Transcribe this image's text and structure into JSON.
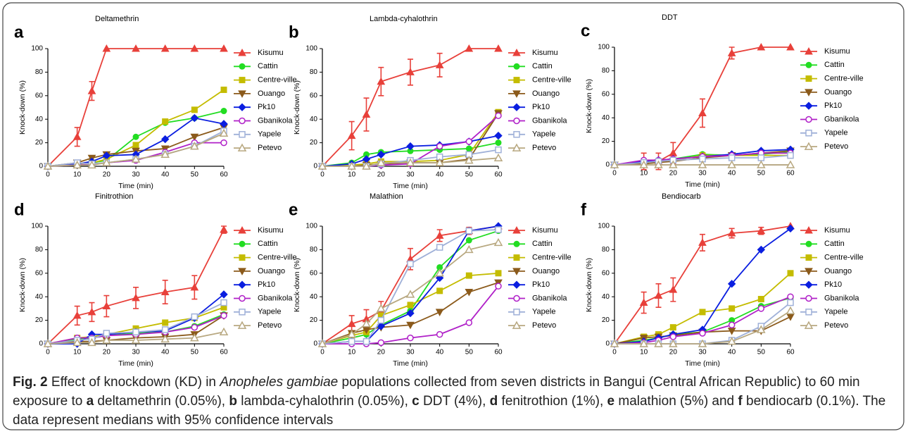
{
  "chart_data": [
    {
      "type": "line",
      "panel_label": "a",
      "title": "Deltamethrin",
      "xlabel": "Time (min)",
      "ylabel": "Knock-down (%)",
      "x": [
        0,
        10,
        15,
        20,
        30,
        40,
        50,
        60
      ],
      "xlim": [
        0,
        60
      ],
      "ylim": [
        0,
        100
      ],
      "xticks": [
        0,
        10,
        20,
        30,
        40,
        50,
        60
      ],
      "yticks": [
        0,
        20,
        40,
        60,
        80,
        100
      ],
      "series": [
        {
          "name": "Kisumu",
          "color": "#e8403a",
          "marker": "triangle",
          "values": [
            0,
            25,
            64,
            100,
            100,
            100,
            100,
            100
          ],
          "errors": [
            0,
            8,
            8,
            0,
            0,
            0,
            0,
            0
          ]
        },
        {
          "name": "Cattin",
          "color": "#22dd22",
          "marker": "circle",
          "values": [
            0,
            2,
            3,
            5,
            25,
            37,
            41,
            47
          ]
        },
        {
          "name": "Centre-ville",
          "color": "#c4bc00",
          "marker": "square",
          "values": [
            0,
            2,
            3,
            6,
            18,
            38,
            48,
            65
          ]
        },
        {
          "name": "Ouango",
          "color": "#8b5a1b",
          "marker": "triangle-down",
          "values": [
            0,
            3,
            7,
            10,
            13,
            15,
            25,
            33
          ]
        },
        {
          "name": "Pk10",
          "color": "#0a1ee0",
          "marker": "diamond",
          "values": [
            0,
            2,
            4,
            9,
            10,
            23,
            41,
            36
          ]
        },
        {
          "name": "Gbanikola",
          "color": "#b020c8",
          "marker": "circle-open",
          "values": [
            0,
            1,
            2,
            3,
            5,
            12,
            20,
            20
          ]
        },
        {
          "name": "Yapele",
          "color": "#9fb0d8",
          "marker": "square-open",
          "values": [
            0,
            3,
            2,
            3,
            6,
            10,
            17,
            30
          ]
        },
        {
          "name": "Petevo",
          "color": "#b8a880",
          "marker": "triangle-open",
          "values": [
            0,
            1,
            1,
            3,
            6,
            10,
            17,
            28
          ]
        }
      ]
    },
    {
      "type": "line",
      "panel_label": "b",
      "title": "Lambda-cyhalothrin",
      "xlabel": "Time (min)",
      "ylabel": "Knock-down (%)",
      "x": [
        0,
        10,
        15,
        20,
        30,
        40,
        50,
        60
      ],
      "xlim": [
        0,
        60
      ],
      "ylim": [
        0,
        100
      ],
      "xticks": [
        0,
        10,
        20,
        30,
        40,
        50,
        60
      ],
      "yticks": [
        0,
        20,
        40,
        60,
        80,
        100
      ],
      "series": [
        {
          "name": "Kisumu",
          "color": "#e8403a",
          "marker": "triangle",
          "values": [
            0,
            26,
            44,
            72,
            80,
            86,
            100,
            100
          ],
          "errors": [
            0,
            12,
            14,
            12,
            11,
            10,
            0,
            0
          ]
        },
        {
          "name": "Cattin",
          "color": "#22dd22",
          "marker": "circle",
          "values": [
            0,
            3,
            10,
            12,
            13,
            14,
            15,
            20
          ]
        },
        {
          "name": "Centre-ville",
          "color": "#c4bc00",
          "marker": "square",
          "values": [
            0,
            1,
            2,
            4,
            4,
            5,
            10,
            46
          ]
        },
        {
          "name": "Ouango",
          "color": "#8b5a1b",
          "marker": "triangle-down",
          "values": [
            0,
            0,
            1,
            2,
            3,
            3,
            6,
            45
          ]
        },
        {
          "name": "Pk10",
          "color": "#0a1ee0",
          "marker": "diamond",
          "values": [
            0,
            2,
            6,
            10,
            17,
            18,
            21,
            26
          ]
        },
        {
          "name": "Gbanikola",
          "color": "#b020c8",
          "marker": "circle-open",
          "values": [
            0,
            0,
            0,
            1,
            2,
            17,
            21,
            43
          ]
        },
        {
          "name": "Yapele",
          "color": "#9fb0d8",
          "marker": "square-open",
          "values": [
            0,
            0,
            0,
            2,
            5,
            8,
            10,
            14
          ]
        },
        {
          "name": "Petevo",
          "color": "#b8a880",
          "marker": "triangle-open",
          "values": [
            0,
            0,
            0,
            3,
            3,
            3,
            5,
            7
          ]
        }
      ]
    },
    {
      "type": "line",
      "panel_label": "c",
      "title": "DDT",
      "xlabel": "Time (min)",
      "ylabel": "Knock-down (%)",
      "x": [
        0,
        10,
        15,
        20,
        30,
        40,
        50,
        60
      ],
      "xlim": [
        0,
        60
      ],
      "ylim": [
        0,
        100
      ],
      "xticks": [
        0,
        10,
        20,
        30,
        40,
        50,
        60
      ],
      "yticks": [
        0,
        20,
        40,
        60,
        80,
        100
      ],
      "series": [
        {
          "name": "Kisumu",
          "color": "#e8403a",
          "marker": "triangle",
          "values": [
            0,
            3,
            3,
            10,
            44,
            95,
            100,
            100
          ],
          "errors": [
            0,
            7,
            7,
            9,
            12,
            5,
            0,
            0
          ]
        },
        {
          "name": "Cattin",
          "color": "#22dd22",
          "marker": "circle",
          "values": [
            0,
            2,
            3,
            5,
            9,
            8,
            9,
            11
          ]
        },
        {
          "name": "Centre-ville",
          "color": "#c4bc00",
          "marker": "square",
          "values": [
            0,
            1,
            2,
            4,
            8,
            8,
            8,
            8
          ]
        },
        {
          "name": "Ouango",
          "color": "#8b5a1b",
          "marker": "triangle-down",
          "values": [
            0,
            1,
            2,
            3,
            6,
            8,
            10,
            12
          ]
        },
        {
          "name": "Pk10",
          "color": "#0a1ee0",
          "marker": "diamond",
          "values": [
            0,
            3,
            4,
            5,
            7,
            9,
            12,
            13
          ]
        },
        {
          "name": "Gbanikola",
          "color": "#b020c8",
          "marker": "circle-open",
          "values": [
            0,
            4,
            4,
            5,
            7,
            8,
            10,
            10
          ]
        },
        {
          "name": "Yapele",
          "color": "#9fb0d8",
          "marker": "square-open",
          "values": [
            0,
            2,
            3,
            4,
            5,
            6,
            6,
            8
          ]
        },
        {
          "name": "Petevo",
          "color": "#b8a880",
          "marker": "triangle-open",
          "values": [
            0,
            0,
            0,
            0,
            0,
            0,
            0,
            0
          ]
        }
      ]
    },
    {
      "type": "line",
      "panel_label": "d",
      "title": "Finitrothion",
      "xlabel": "Time (min)",
      "ylabel": "Knock-down (%)",
      "x": [
        0,
        10,
        15,
        20,
        30,
        40,
        50,
        60
      ],
      "xlim": [
        0,
        60
      ],
      "ylim": [
        0,
        100
      ],
      "xticks": [
        0,
        10,
        20,
        30,
        40,
        50,
        60
      ],
      "yticks": [
        0,
        20,
        40,
        60,
        80,
        100
      ],
      "series": [
        {
          "name": "Kisumu",
          "color": "#e8403a",
          "marker": "triangle",
          "values": [
            0,
            24,
            27,
            32,
            39,
            44,
            48,
            97
          ],
          "errors": [
            0,
            8,
            8,
            9,
            9,
            10,
            10,
            3
          ]
        },
        {
          "name": "Cattin",
          "color": "#22dd22",
          "marker": "circle",
          "values": [
            0,
            4,
            5,
            7,
            9,
            10,
            15,
            25
          ]
        },
        {
          "name": "Centre-ville",
          "color": "#c4bc00",
          "marker": "square",
          "values": [
            0,
            5,
            6,
            8,
            13,
            18,
            22,
            31
          ]
        },
        {
          "name": "Ouango",
          "color": "#8b5a1b",
          "marker": "triangle-down",
          "values": [
            0,
            2,
            2,
            3,
            5,
            6,
            8,
            24
          ]
        },
        {
          "name": "Pk10",
          "color": "#0a1ee0",
          "marker": "diamond",
          "values": [
            0,
            0,
            8,
            8,
            10,
            11,
            22,
            42
          ]
        },
        {
          "name": "Gbanikola",
          "color": "#b020c8",
          "marker": "circle-open",
          "values": [
            0,
            5,
            5,
            7,
            8,
            10,
            14,
            24
          ]
        },
        {
          "name": "Yapele",
          "color": "#9fb0d8",
          "marker": "square-open",
          "values": [
            0,
            3,
            4,
            9,
            10,
            12,
            23,
            35
          ]
        },
        {
          "name": "Petevo",
          "color": "#b8a880",
          "marker": "triangle-open",
          "values": [
            0,
            1,
            1,
            3,
            3,
            4,
            5,
            10
          ]
        }
      ]
    },
    {
      "type": "line",
      "panel_label": "e",
      "title": "Malathion",
      "xlabel": "Time (min)",
      "ylabel": "Knock-down (%)",
      "x": [
        0,
        10,
        15,
        20,
        30,
        40,
        50,
        60
      ],
      "xlim": [
        0,
        60
      ],
      "ylim": [
        0,
        100
      ],
      "xticks": [
        0,
        10,
        20,
        30,
        40,
        50,
        60
      ],
      "yticks": [
        0,
        20,
        40,
        60,
        80,
        100
      ],
      "series": [
        {
          "name": "Kisumu",
          "color": "#e8403a",
          "marker": "triangle",
          "values": [
            0,
            17,
            21,
            28,
            72,
            92,
            96,
            100
          ],
          "errors": [
            0,
            7,
            8,
            8,
            9,
            5,
            3,
            0
          ]
        },
        {
          "name": "Cattin",
          "color": "#22dd22",
          "marker": "circle",
          "values": [
            0,
            5,
            8,
            16,
            28,
            65,
            88,
            96
          ]
        },
        {
          "name": "Centre-ville",
          "color": "#c4bc00",
          "marker": "square",
          "values": [
            0,
            7,
            10,
            24,
            33,
            45,
            58,
            60
          ]
        },
        {
          "name": "Ouango",
          "color": "#8b5a1b",
          "marker": "triangle-down",
          "values": [
            0,
            9,
            12,
            14,
            16,
            27,
            44,
            52
          ]
        },
        {
          "name": "Pk10",
          "color": "#0a1ee0",
          "marker": "diamond",
          "values": [
            0,
            2,
            2,
            15,
            26,
            56,
            96,
            100
          ]
        },
        {
          "name": "Gbanikola",
          "color": "#b020c8",
          "marker": "circle-open",
          "values": [
            0,
            0,
            0,
            1,
            5,
            8,
            18,
            49
          ]
        },
        {
          "name": "Yapele",
          "color": "#9fb0d8",
          "marker": "square-open",
          "values": [
            0,
            2,
            2,
            20,
            68,
            82,
            96,
            97
          ]
        },
        {
          "name": "Petevo",
          "color": "#b8a880",
          "marker": "triangle-open",
          "values": [
            0,
            8,
            17,
            30,
            42,
            60,
            80,
            86
          ]
        }
      ]
    },
    {
      "type": "line",
      "panel_label": "f",
      "title": "Bendiocarb",
      "xlabel": "Time (min)",
      "ylabel": "Knock-down (%)",
      "x": [
        0,
        10,
        15,
        20,
        30,
        40,
        50,
        60
      ],
      "xlim": [
        0,
        60
      ],
      "ylim": [
        0,
        100
      ],
      "xticks": [
        0,
        10,
        20,
        30,
        40,
        50,
        60
      ],
      "yticks": [
        0,
        20,
        40,
        60,
        80,
        100
      ],
      "series": [
        {
          "name": "Kisumu",
          "color": "#e8403a",
          "marker": "triangle",
          "values": [
            0,
            35,
            41,
            46,
            86,
            94,
            96,
            100
          ],
          "errors": [
            0,
            9,
            10,
            10,
            7,
            4,
            3,
            0
          ]
        },
        {
          "name": "Cattin",
          "color": "#22dd22",
          "marker": "circle",
          "values": [
            0,
            3,
            5,
            8,
            10,
            20,
            32,
            39
          ]
        },
        {
          "name": "Centre-ville",
          "color": "#c4bc00",
          "marker": "square",
          "values": [
            0,
            6,
            8,
            14,
            27,
            30,
            38,
            60
          ]
        },
        {
          "name": "Ouango",
          "color": "#8b5a1b",
          "marker": "triangle-down",
          "values": [
            0,
            5,
            6,
            7,
            10,
            11,
            11,
            23
          ]
        },
        {
          "name": "Pk10",
          "color": "#0a1ee0",
          "marker": "diamond",
          "values": [
            0,
            2,
            5,
            8,
            12,
            51,
            80,
            98
          ]
        },
        {
          "name": "Gbanikola",
          "color": "#b020c8",
          "marker": "circle-open",
          "values": [
            0,
            1,
            3,
            6,
            9,
            16,
            30,
            40
          ]
        },
        {
          "name": "Yapele",
          "color": "#9fb0d8",
          "marker": "square-open",
          "values": [
            0,
            0,
            0,
            0,
            0,
            3,
            15,
            35
          ]
        },
        {
          "name": "Petevo",
          "color": "#b8a880",
          "marker": "triangle-open",
          "values": [
            0,
            0,
            0,
            0,
            0,
            2,
            12,
            28
          ]
        }
      ]
    }
  ],
  "caption": [
    {
      "text": "Fig. 2",
      "style": "bold"
    },
    {
      "text": " Effect of knockdown (KD) in ",
      "style": "normal"
    },
    {
      "text": "Anopheles gambiae",
      "style": "italic"
    },
    {
      "text": " populations collected from seven districts in Bangui (Central African Republic) to 60 min exposure to ",
      "style": "normal"
    },
    {
      "text": "a",
      "style": "bold"
    },
    {
      "text": " deltamethrin (0.05%), ",
      "style": "normal"
    },
    {
      "text": "b",
      "style": "bold"
    },
    {
      "text": " lambda-cyhalothrin (0.05%), ",
      "style": "normal"
    },
    {
      "text": "c",
      "style": "bold"
    },
    {
      "text": " DDT (4%), ",
      "style": "normal"
    },
    {
      "text": "d",
      "style": "bold"
    },
    {
      "text": " fenitrothion (1%), ",
      "style": "normal"
    },
    {
      "text": "e",
      "style": "bold"
    },
    {
      "text": " malathion (5%) and ",
      "style": "normal"
    },
    {
      "text": "f",
      "style": "bold"
    },
    {
      "text": " bendiocarb (0.1%). The data represent medians with 95% confidence intervals",
      "style": "normal"
    }
  ]
}
